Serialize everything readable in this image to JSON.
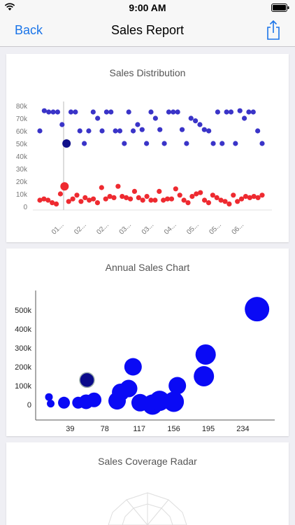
{
  "status": {
    "time": "9:00 AM"
  },
  "nav": {
    "back": "Back",
    "title": "Sales Report"
  },
  "colors": {
    "accent": "#1a74e8",
    "series_blue": "#3a34c8",
    "series_red": "#ee2a30",
    "bubble": "#0a0af5",
    "bubble_selected": "#0a0a8a"
  },
  "icons": {
    "wifi": "wifi-icon",
    "battery": "battery-icon",
    "share": "share-icon"
  },
  "cards": [
    {
      "title": "Sales Distribution"
    },
    {
      "title": "Annual Sales Chart"
    },
    {
      "title": "Sales Coverage Radar"
    }
  ],
  "chart_data": [
    {
      "type": "scatter",
      "title": "Sales Distribution",
      "y_ticks": [
        "0",
        "10k",
        "20k",
        "30k",
        "40k",
        "50k",
        "60k",
        "70k",
        "80k"
      ],
      "ylim": [
        0,
        80000
      ],
      "x_ticks": [
        "01...",
        "02...",
        "02...",
        "03...",
        "03...",
        "04...",
        "05...",
        "05...",
        "06..."
      ],
      "series": [
        {
          "color": "blue",
          "values": [
            60000,
            76000,
            75000,
            75000,
            75000,
            65000,
            50000,
            75000,
            75000,
            60000,
            50000,
            60000,
            75000,
            70000,
            60000,
            75000,
            75000,
            60000,
            60000,
            50000,
            75000,
            60000,
            65000,
            61000,
            50000,
            75000,
            70000,
            61000,
            50000,
            75000,
            75000,
            75000,
            61000,
            50000,
            70000,
            68000,
            65000,
            61000,
            60000,
            50000,
            75000,
            50000,
            75000,
            75000,
            50000,
            76000,
            70000,
            75000,
            75000,
            60000,
            50000
          ]
        },
        {
          "color": "red",
          "values": [
            5000,
            6000,
            5000,
            3000,
            2000,
            10000,
            16000,
            4000,
            6000,
            9000,
            4000,
            7000,
            5000,
            6000,
            3000,
            15000,
            6000,
            8000,
            7000,
            16000,
            8000,
            7000,
            6000,
            12000,
            7000,
            5000,
            8000,
            5000,
            5000,
            12000,
            5000,
            6000,
            6000,
            14000,
            9000,
            5000,
            3000,
            8000,
            10000,
            11000,
            5000,
            3000,
            9000,
            7000,
            5000,
            4000,
            2000,
            9000,
            4000,
            6000,
            8000,
            7000,
            8000,
            7000,
            9000
          ]
        }
      ],
      "highlight": {
        "index": 6
      },
      "grid": false
    },
    {
      "type": "scatter",
      "title": "Annual Sales Chart",
      "x_ticks": [
        "39",
        "78",
        "117",
        "156",
        "195",
        "234"
      ],
      "y_ticks": [
        "0",
        "100k",
        "200k",
        "300k",
        "400k",
        "500k"
      ],
      "xlim": [
        0,
        270
      ],
      "ylim": [
        0,
        540000
      ],
      "points": [
        {
          "x": 15,
          "y": 40000,
          "size": 1
        },
        {
          "x": 17,
          "y": 5000,
          "size": 1
        },
        {
          "x": 32,
          "y": 10000,
          "size": 2
        },
        {
          "x": 48,
          "y": 10000,
          "size": 2
        },
        {
          "x": 57,
          "y": 15000,
          "size": 3
        },
        {
          "x": 58,
          "y": 130000,
          "size": 3,
          "selected": true
        },
        {
          "x": 66,
          "y": 25000,
          "size": 3
        },
        {
          "x": 92,
          "y": 20000,
          "size": 4
        },
        {
          "x": 96,
          "y": 65000,
          "size": 4
        },
        {
          "x": 105,
          "y": 85000,
          "size": 4
        },
        {
          "x": 110,
          "y": 200000,
          "size": 4
        },
        {
          "x": 118,
          "y": 10000,
          "size": 4
        },
        {
          "x": 132,
          "y": 0,
          "size": 5
        },
        {
          "x": 140,
          "y": 20000,
          "size": 5
        },
        {
          "x": 156,
          "y": 15000,
          "size": 5
        },
        {
          "x": 160,
          "y": 100000,
          "size": 4
        },
        {
          "x": 190,
          "y": 150000,
          "size": 5
        },
        {
          "x": 192,
          "y": 265000,
          "size": 5
        },
        {
          "x": 250,
          "y": 505000,
          "size": 6
        }
      ],
      "grid": false
    }
  ]
}
